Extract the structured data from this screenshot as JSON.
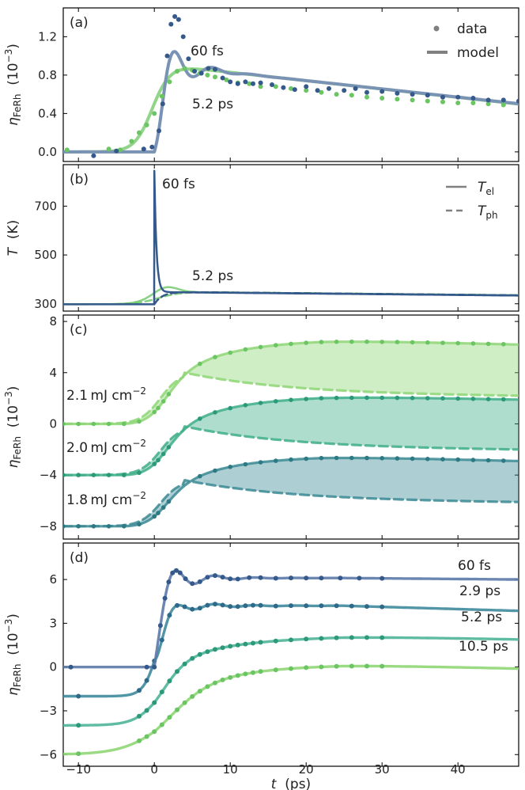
{
  "figure": {
    "xlabel_italic": "t",
    "xlabel_unit": "(ps)",
    "xticks": [
      "−10",
      "0",
      "10",
      "20",
      "30",
      "40"
    ]
  },
  "chart_data": [
    {
      "id": "a",
      "type": "scatter",
      "panel_label": "(a)",
      "ylabel_sym": "η",
      "ylabel_sub": "FeRh",
      "ylabel_unit": "(10",
      "ylabel_exp": "−3",
      "ylabel_close": ")",
      "yticks": [
        "0.0",
        "0.4",
        "0.8",
        "1.2"
      ],
      "xlim": [
        -12,
        48
      ],
      "ylim": [
        -0.1,
        1.5
      ],
      "legend": {
        "position": "top-right",
        "entries": [
          "data",
          "model"
        ]
      },
      "series": [
        {
          "name": "60 fs",
          "color": "#34598a",
          "points": [
            [
              -8.0,
              -0.04
            ],
            [
              -5.0,
              0.01
            ],
            [
              -1.4,
              0.03
            ],
            [
              -0.3,
              0.05
            ],
            [
              0.6,
              0.22
            ],
            [
              1.1,
              0.5
            ],
            [
              1.7,
              1.0
            ],
            [
              2.2,
              1.33
            ],
            [
              2.7,
              1.41
            ],
            [
              3.2,
              1.38
            ],
            [
              3.8,
              1.2
            ],
            [
              4.5,
              0.97
            ],
            [
              5.3,
              0.84
            ],
            [
              6.2,
              0.82
            ],
            [
              7.1,
              0.87
            ],
            [
              8.0,
              0.86
            ],
            [
              9.0,
              0.77
            ],
            [
              10.0,
              0.73
            ],
            [
              11.0,
              0.71
            ],
            [
              12.0,
              0.73
            ],
            [
              13.0,
              0.71
            ],
            [
              14.0,
              0.72
            ],
            [
              15.5,
              0.7
            ],
            [
              17.0,
              0.67
            ],
            [
              18.5,
              0.65
            ],
            [
              20.0,
              0.68
            ],
            [
              21.5,
              0.64
            ],
            [
              23.0,
              0.66
            ],
            [
              25.0,
              0.64
            ],
            [
              26.5,
              0.66
            ],
            [
              28.0,
              0.62
            ],
            [
              30.0,
              0.63
            ],
            [
              32.0,
              0.61
            ],
            [
              34.0,
              0.6
            ],
            [
              36.0,
              0.59
            ],
            [
              38.0,
              0.57
            ],
            [
              40.0,
              0.57
            ],
            [
              42.0,
              0.56
            ],
            [
              44.0,
              0.54
            ],
            [
              46.0,
              0.54
            ],
            [
              48.0,
              0.53
            ]
          ]
        },
        {
          "name": "5.2 ps",
          "color": "#6cc563",
          "points": [
            [
              -11.5,
              0.02
            ],
            [
              -6.0,
              0.03
            ],
            [
              -4.5,
              0.02
            ],
            [
              -3.0,
              0.11
            ],
            [
              -2.0,
              0.2
            ],
            [
              -1.0,
              0.28
            ],
            [
              0.0,
              0.4
            ],
            [
              1.0,
              0.58
            ],
            [
              2.0,
              0.73
            ],
            [
              3.0,
              0.84
            ],
            [
              4.0,
              0.87
            ],
            [
              5.0,
              0.85
            ],
            [
              6.0,
              0.82
            ],
            [
              7.0,
              0.8
            ],
            [
              8.0,
              0.78
            ],
            [
              9.5,
              0.75
            ],
            [
              11.0,
              0.72
            ],
            [
              12.5,
              0.71
            ],
            [
              14.0,
              0.68
            ],
            [
              16.0,
              0.68
            ],
            [
              18.0,
              0.66
            ],
            [
              20.0,
              0.64
            ],
            [
              22.0,
              0.62
            ],
            [
              24.0,
              0.6
            ],
            [
              26.0,
              0.59
            ],
            [
              28.0,
              0.57
            ],
            [
              30.0,
              0.56
            ],
            [
              32.0,
              0.55
            ],
            [
              34.0,
              0.54
            ],
            [
              36.0,
              0.53
            ],
            [
              38.0,
              0.52
            ],
            [
              40.0,
              0.51
            ],
            [
              42.0,
              0.51
            ],
            [
              44.0,
              0.5
            ],
            [
              46.0,
              0.49
            ]
          ]
        }
      ],
      "annotations": [
        {
          "text": "60 fs",
          "color": "#34598a"
        },
        {
          "text": "5.2 ps",
          "color": "#6cc563"
        }
      ]
    },
    {
      "id": "b",
      "type": "line",
      "panel_label": "(b)",
      "ylabel_sym": "T",
      "ylabel_unit": "(K)",
      "yticks": [
        "300",
        "500",
        "700"
      ],
      "xlim": [
        -12,
        48
      ],
      "ylim": [
        270,
        870
      ],
      "legend": {
        "position": "top-right",
        "entries": [
          {
            "sym": "T",
            "sub": "el"
          },
          {
            "sym": "T",
            "sub": "ph"
          }
        ]
      },
      "series": [
        {
          "name": "60 fs",
          "color": "#34598a",
          "peak": {
            "x": 0.1,
            "y": 845
          }
        },
        {
          "name": "5.2 ps",
          "color": "#6cc563",
          "peak": {
            "x": 1.5,
            "y": 375
          }
        }
      ],
      "baseline": 298,
      "plateau": 348,
      "end_value": 330,
      "annotations": [
        {
          "text": "60 fs",
          "color": "#34598a"
        },
        {
          "text": "5.2 ps",
          "color": "#6cc563"
        }
      ]
    },
    {
      "id": "c",
      "type": "area",
      "panel_label": "(c)",
      "ylabel_sym": "η",
      "ylabel_sub": "FeRh",
      "ylabel_unit": "(10",
      "ylabel_exp": "−3",
      "ylabel_close": ")",
      "yticks": [
        "−8",
        "−4",
        "0",
        "4",
        "8"
      ],
      "xlim": [
        -12,
        48
      ],
      "ylim": [
        -9,
        8.5
      ],
      "series": [
        {
          "name": "2.1 mJ cm−2",
          "fluence": "2.1",
          "unit": "mJ cm",
          "exp": "−2",
          "color": "#8ed675",
          "offset": 0,
          "upper_end": 6.6,
          "upper_final": 6.2,
          "lower_peak": 4.0,
          "lower_end": 2.3
        },
        {
          "name": "2.0 mJ cm−2",
          "fluence": "2.0",
          "unit": "mJ cm",
          "exp": "−2",
          "color": "#3eae88",
          "offset": -4,
          "upper_end": 2.2,
          "upper_final": 1.9,
          "lower_peak": -0.2,
          "lower_end": -1.9
        },
        {
          "name": "1.8 mJ cm−2",
          "fluence": "1.8",
          "unit": "mJ cm",
          "exp": "−2",
          "color": "#3b8a94",
          "offset": -8,
          "upper_end": -2.5,
          "upper_final": -2.9,
          "lower_peak": -4.4,
          "lower_end": -6.0
        }
      ]
    },
    {
      "id": "d",
      "type": "scatter",
      "panel_label": "(d)",
      "ylabel_sym": "η",
      "ylabel_sub": "FeRh",
      "ylabel_unit": "(10",
      "ylabel_exp": "−3",
      "ylabel_close": ")",
      "yticks": [
        "−6",
        "−3",
        "0",
        "3",
        "6"
      ],
      "xlim": [
        -12,
        48
      ],
      "ylim": [
        -6.8,
        8.5
      ],
      "series": [
        {
          "name": "60 fs",
          "color": "#5b7aa8",
          "dot": "#34598a",
          "offset": 0,
          "final": 6.0,
          "end": 6.1,
          "tau": 0.9,
          "osc": 1.8
        },
        {
          "name": "2.9 ps",
          "color": "#3f8a9c",
          "dot": "#2e6a8a",
          "offset": -2,
          "final": 3.85,
          "end": 4.2,
          "tau": 2.0,
          "osc": 0.7
        },
        {
          "name": "5.2 ps",
          "color": "#4fb499",
          "dot": "#2c9a7a",
          "offset": -4,
          "final": 1.9,
          "end": 2.15,
          "tau": 3.6,
          "osc": 0
        },
        {
          "name": "10.5 ps",
          "color": "#8ed675",
          "dot": "#6cc563",
          "offset": -6,
          "final": -0.1,
          "end": 0.2,
          "tau": 6.0,
          "osc": 0
        }
      ]
    }
  ]
}
